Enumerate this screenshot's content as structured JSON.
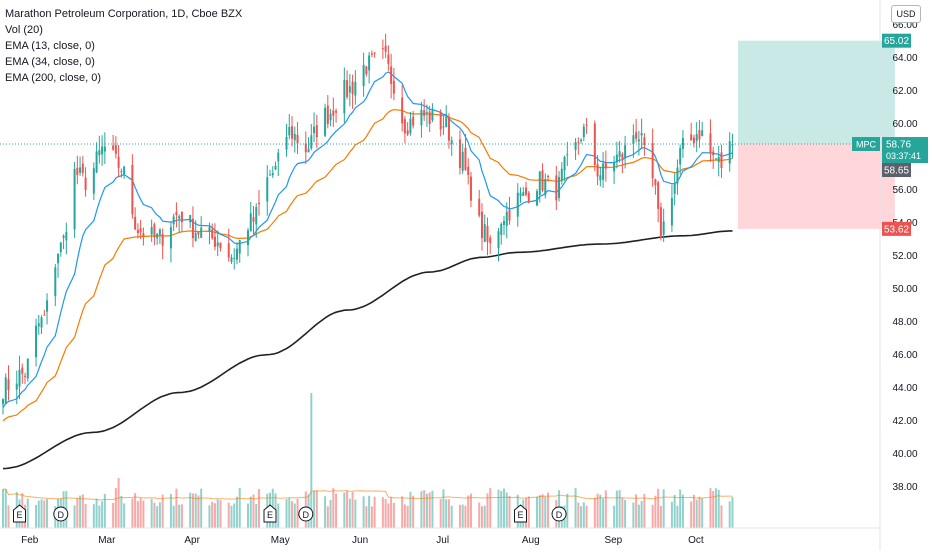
{
  "header": {
    "title": "Marathon Petroleum Corporation, 1D, Cboe BZX",
    "indicators": [
      "Vol (20)",
      "EMA (13, close, 0)",
      "EMA (34, close, 0)",
      "EMA (200, close, 0)"
    ],
    "currency_button": "USD"
  },
  "colors": {
    "up": "#26a69a",
    "down": "#ef5350",
    "ema13": "#2196f3",
    "ema34": "#f57c00",
    "ema200": "#212121",
    "profit_zone": "#b2dfdb",
    "loss_zone": "#ffcdd2",
    "last_price_line": "#26a69a"
  },
  "price_labels": {
    "symbol": "MPC",
    "last_price": "58.76",
    "countdown": "03:37:41",
    "prev_close": "58.65",
    "target": "65.02",
    "stop": "53.62"
  },
  "event_markers": [
    {
      "letter": "E",
      "date": "2021-02-02"
    },
    {
      "letter": "D",
      "date": "2021-02-17"
    },
    {
      "letter": "E",
      "date": "2021-05-04"
    },
    {
      "letter": "D",
      "date": "2021-05-17"
    },
    {
      "letter": "E",
      "date": "2021-08-03"
    },
    {
      "letter": "D",
      "date": "2021-08-17"
    }
  ],
  "chart_data": {
    "type": "candlestick",
    "title": "Marathon Petroleum Corporation, 1D, Cboe BZX",
    "y_axis": {
      "ylim": [
        35.5,
        67.0
      ],
      "ticks": [
        "38.00",
        "40.00",
        "42.00",
        "44.00",
        "46.00",
        "48.00",
        "50.00",
        "52.00",
        "54.00",
        "56.00",
        "58.00",
        "60.00",
        "62.00",
        "64.00",
        "66.00"
      ],
      "tick_values": [
        38,
        40,
        42,
        44,
        46,
        48,
        50,
        52,
        54,
        56,
        58,
        60,
        62,
        64,
        66
      ]
    },
    "x_axis": {
      "date_range": [
        "2021-01-27",
        "2021-10-29"
      ],
      "ticks": [
        "Feb",
        "Mar",
        "Apr",
        "May",
        "Jun",
        "Jul",
        "Aug",
        "Sep",
        "Oct"
      ],
      "tick_dates": [
        "2021-02-01",
        "2021-03-01",
        "2021-04-01",
        "2021-05-03",
        "2021-06-01",
        "2021-07-01",
        "2021-08-02",
        "2021-09-01",
        "2021-10-01"
      ]
    },
    "ohlc_anchors": [
      [
        "2021-01-27",
        44.0
      ],
      [
        "2021-02-03",
        44.8
      ],
      [
        "2021-02-10",
        48.0
      ],
      [
        "2021-02-17",
        52.5
      ],
      [
        "2021-02-22",
        57.0
      ],
      [
        "2021-02-26",
        56.5
      ],
      [
        "2021-03-05",
        58.5
      ],
      [
        "2021-03-10",
        57.5
      ],
      [
        "2021-03-18",
        53.5
      ],
      [
        "2021-03-24",
        53.0
      ],
      [
        "2021-04-01",
        54.5
      ],
      [
        "2021-04-08",
        53.5
      ],
      [
        "2021-04-14",
        53.0
      ],
      [
        "2021-04-20",
        52.0
      ],
      [
        "2021-04-27",
        54.0
      ],
      [
        "2021-05-05",
        57.0
      ],
      [
        "2021-05-11",
        59.5
      ],
      [
        "2021-05-17",
        58.5
      ],
      [
        "2021-05-24",
        60.5
      ],
      [
        "2021-06-01",
        62.0
      ],
      [
        "2021-06-08",
        63.5
      ],
      [
        "2021-06-14",
        64.0
      ],
      [
        "2021-06-18",
        62.5
      ],
      [
        "2021-06-22",
        60.0
      ],
      [
        "2021-06-28",
        60.5
      ],
      [
        "2021-07-06",
        60.0
      ],
      [
        "2021-07-12",
        58.0
      ],
      [
        "2021-07-16",
        56.0
      ],
      [
        "2021-07-20",
        53.5
      ],
      [
        "2021-07-23",
        52.5
      ],
      [
        "2021-07-28",
        54.5
      ],
      [
        "2021-08-03",
        55.5
      ],
      [
        "2021-08-10",
        56.5
      ],
      [
        "2021-08-16",
        56.0
      ],
      [
        "2021-08-20",
        57.5
      ],
      [
        "2021-08-26",
        59.5
      ],
      [
        "2021-09-01",
        57.0
      ],
      [
        "2021-09-08",
        58.0
      ],
      [
        "2021-09-14",
        59.5
      ],
      [
        "2021-09-20",
        56.5
      ],
      [
        "2021-09-23",
        53.5
      ],
      [
        "2021-09-27",
        56.0
      ],
      [
        "2021-10-01",
        58.5
      ],
      [
        "2021-10-07",
        59.5
      ],
      [
        "2021-10-12",
        58.0
      ],
      [
        "2021-10-15",
        57.5
      ],
      [
        "2021-10-19",
        58.76
      ]
    ],
    "ema200_anchors": [
      [
        "2021-01-27",
        39.1
      ],
      [
        "2021-03-01",
        41.3
      ],
      [
        "2021-04-01",
        43.7
      ],
      [
        "2021-05-03",
        46.0
      ],
      [
        "2021-06-01",
        48.7
      ],
      [
        "2021-07-01",
        51.0
      ],
      [
        "2021-07-20",
        51.9
      ],
      [
        "2021-08-02",
        52.2
      ],
      [
        "2021-09-01",
        52.7
      ],
      [
        "2021-10-01",
        53.2
      ],
      [
        "2021-10-19",
        53.5
      ]
    ],
    "volume_peaks": [
      {
        "date": "2021-03-10",
        "relative": 0.37
      },
      {
        "date": "2021-05-19",
        "relative": 1.0
      }
    ],
    "long_position": {
      "entry": 58.76,
      "target": 65.02,
      "stop": 53.62,
      "start_date": "2021-10-21",
      "end_date": "2021-12-17"
    }
  }
}
